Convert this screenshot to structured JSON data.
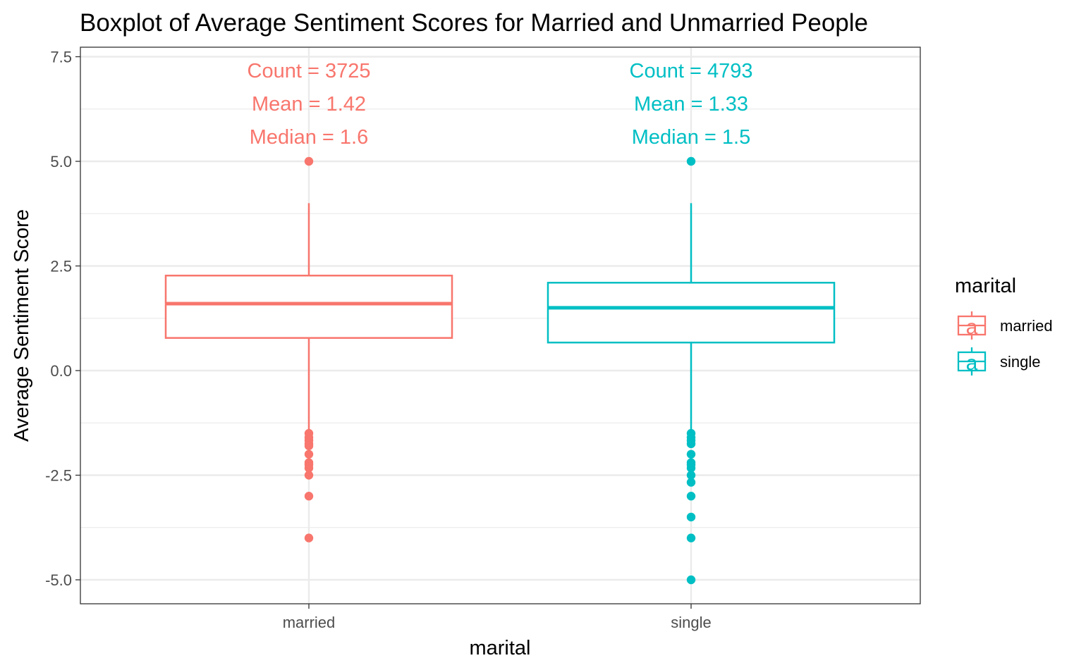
{
  "chart_data": {
    "type": "boxplot",
    "title": "Boxplot of Average Sentiment Scores for Married and Unmarried People",
    "xlabel": "marital",
    "ylabel": "Average Sentiment Score",
    "ylim": [
      -5.6,
      7.6
    ],
    "yticks": [
      -5.0,
      -2.5,
      0.0,
      2.5,
      5.0,
      7.5
    ],
    "ytick_labels": [
      "-5.0",
      "-2.5",
      "0.0",
      "2.5",
      "5.0",
      "7.5"
    ],
    "grid": true,
    "legend": {
      "title": "marital",
      "position": "right",
      "glyph": "a"
    },
    "categories": [
      "married",
      "single"
    ],
    "series": [
      {
        "name": "married",
        "color": "#F8766D",
        "q1": 0.78,
        "median": 1.6,
        "q3": 2.27,
        "whisker_low": -1.45,
        "whisker_high": 4.0,
        "outliers": [
          5.0,
          -1.5,
          -1.6,
          -1.67,
          -1.75,
          -1.8,
          -2.0,
          -2.2,
          -2.25,
          -2.33,
          -2.5,
          -3.0,
          -4.0
        ],
        "annotations": [
          "Count = 3725",
          "Mean = 1.42",
          "Median = 1.6"
        ]
      },
      {
        "name": "single",
        "color": "#00BFC4",
        "q1": 0.67,
        "median": 1.5,
        "q3": 2.1,
        "whisker_low": -1.43,
        "whisker_high": 4.0,
        "outliers": [
          5.0,
          -1.5,
          -1.6,
          -1.67,
          -1.75,
          -2.0,
          -2.2,
          -2.25,
          -2.33,
          -2.5,
          -2.67,
          -3.0,
          -3.5,
          -4.0,
          -5.0
        ],
        "annotations": [
          "Count = 4793",
          "Mean = 1.33",
          "Median = 1.5"
        ]
      }
    ]
  }
}
